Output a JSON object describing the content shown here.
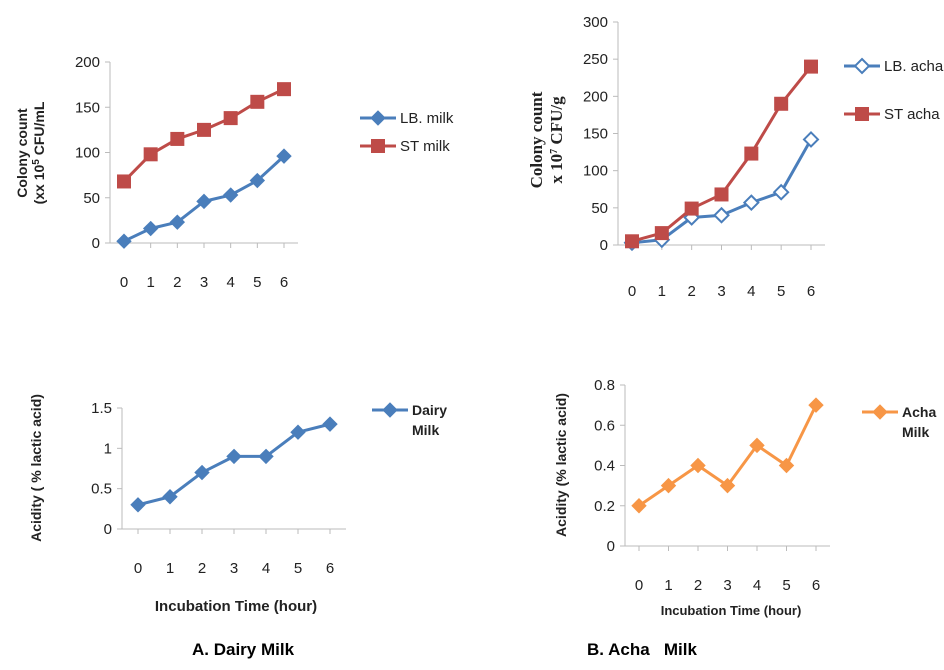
{
  "captions": {
    "left": "A. Dairy Milk",
    "right": "B. Acha   Milk"
  },
  "chart_data": [
    {
      "type": "line",
      "categories": [
        "0",
        "1",
        "2",
        "3",
        "4",
        "5",
        "6"
      ],
      "ylim": [
        0,
        200
      ],
      "yticks": [
        "0",
        "50",
        "100",
        "150",
        "200"
      ],
      "ylabel": [
        "Colony count",
        "(xx 10",
        "5",
        " CFU/mL"
      ],
      "xlabel": "",
      "grid": false,
      "legend_placement": "right",
      "series": [
        {
          "name": "LB. milk",
          "values": [
            2,
            16,
            23,
            46,
            53,
            69,
            96
          ],
          "color": "#4a7ebb",
          "marker": "diamond",
          "filled": true
        },
        {
          "name": "ST milk",
          "values": [
            68,
            98,
            115,
            125,
            138,
            156,
            170
          ],
          "color": "#be4b48",
          "marker": "square",
          "filled": true
        }
      ]
    },
    {
      "type": "line",
      "categories": [
        "0",
        "1",
        "2",
        "3",
        "4",
        "5",
        "6"
      ],
      "ylim": [
        0,
        300
      ],
      "yticks": [
        "0",
        "50",
        "100",
        "150",
        "200",
        "250",
        "300"
      ],
      "ylabel": [
        "Colony count",
        "x 10",
        "7",
        " CFU/g"
      ],
      "xlabel": "",
      "grid": false,
      "legend_placement": "right",
      "series": [
        {
          "name": "LB. acha",
          "values": [
            3,
            7,
            37,
            40,
            57,
            71,
            142
          ],
          "color": "#4a7ebb",
          "marker": "diamond",
          "filled": false
        },
        {
          "name": "ST acha",
          "values": [
            5,
            16,
            49,
            68,
            123,
            190,
            240
          ],
          "color": "#be4b48",
          "marker": "square",
          "filled": true
        }
      ]
    },
    {
      "type": "line",
      "categories": [
        "0",
        "1",
        "2",
        "3",
        "4",
        "5",
        "6"
      ],
      "ylim": [
        0,
        1.5
      ],
      "yticks": [
        "0",
        "0.5",
        "1",
        "1.5"
      ],
      "ylabel": "Acidity ( % lactic acid)",
      "xlabel": "Incubation Time (hour)",
      "grid": false,
      "legend_placement": "right",
      "series": [
        {
          "name": "Dairy\nMilk",
          "values": [
            0.3,
            0.4,
            0.7,
            0.9,
            0.9,
            1.2,
            1.3
          ],
          "color": "#4a7ebb",
          "marker": "diamond",
          "filled": true
        }
      ]
    },
    {
      "type": "line",
      "categories": [
        "0",
        "1",
        "2",
        "3",
        "4",
        "5",
        "6"
      ],
      "ylim": [
        0,
        0.8
      ],
      "yticks": [
        "0",
        "0.2",
        "0.4",
        "0.6",
        "0.8"
      ],
      "ylabel": "Acidity (% lactic acid)",
      "xlabel": "Incubation Time (hour)",
      "grid": false,
      "legend_placement": "right",
      "series": [
        {
          "name": "Acha\nMilk",
          "values": [
            0.2,
            0.3,
            0.4,
            0.3,
            0.5,
            0.4,
            0.7
          ],
          "color": "#f79646",
          "marker": "diamond",
          "filled": true
        }
      ]
    }
  ]
}
